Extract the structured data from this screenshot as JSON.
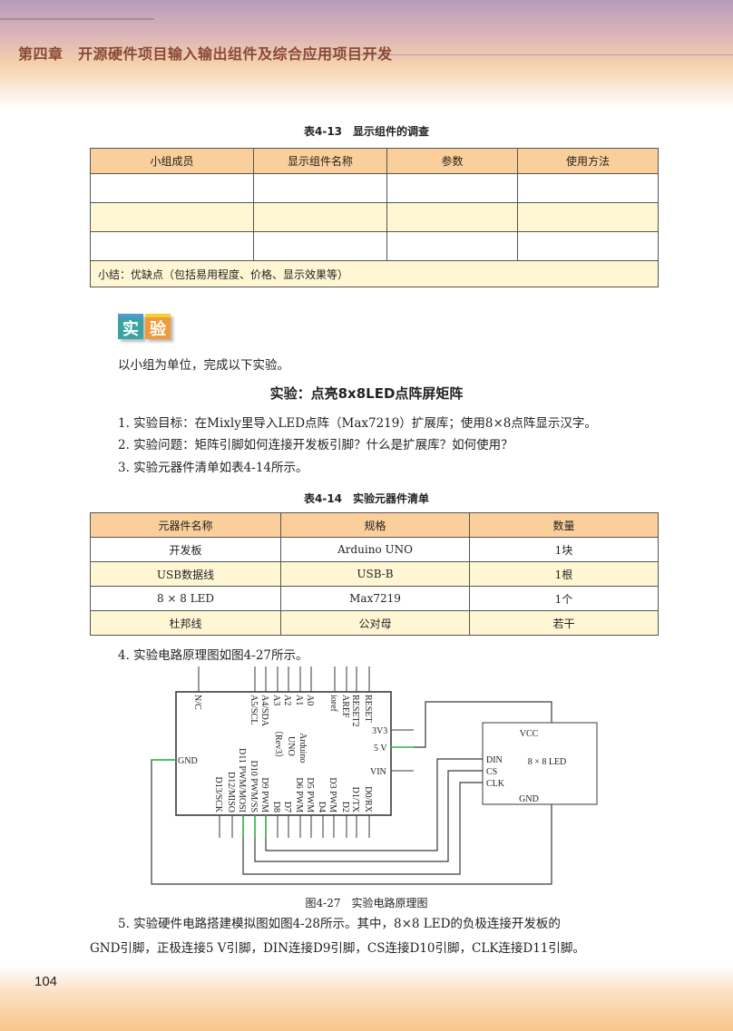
{
  "header": {
    "chapter": "第四章　开源硬件项目输入输出组件及综合应用项目开发"
  },
  "table1": {
    "caption": "表4-13　显示组件的调查",
    "headers": [
      "小组成员",
      "显示组件名称",
      "参数",
      "使用方法"
    ],
    "summary": "小结：优缺点（包括易用程度、价格、显示效果等）"
  },
  "badge": {
    "char1": "实",
    "char2": "验"
  },
  "intro": "以小组为单位，完成以下实验。",
  "experiment_title": "实验：点亮8x8LED点阵屏矩阵",
  "steps": [
    "1.  实验目标：在Mixly里导入LED点阵（Max7219）扩展库；使用8×8点阵显示汉字。",
    "2.  实验问题：矩阵引脚如何连接开发板引脚？什么是扩展库？如何使用？",
    "3.  实验元器件清单如表4-14所示。",
    "4.  实验电路原理图如图4-27所示。"
  ],
  "table2": {
    "caption": "表4-14　实验元器件清单",
    "headers": [
      "元器件名称",
      "规格",
      "数量"
    ],
    "rows": [
      [
        "开发板",
        "Arduino UNO",
        "1块"
      ],
      [
        "USB数据线",
        "USB-B",
        "1根"
      ],
      [
        "8 × 8 LED",
        "Max7219",
        "1个"
      ],
      [
        "杜邦线",
        "公对母",
        "若干"
      ]
    ]
  },
  "figure": {
    "caption": "图4-27　实验电路原理图",
    "top_pins": [
      "N/C",
      "A5/SCL",
      "A4/SDA",
      "A3",
      "A2",
      "A1",
      "A0",
      "ioref",
      "AREF",
      "RESET2",
      "RESET"
    ],
    "bottom_pins": [
      "D13/SCK",
      "D12/MISO",
      "D11 PWM/MOSI",
      "D10 PWM/SS",
      "D9 PWM",
      "D8",
      "D7",
      "D6 PWM",
      "D5 PWM",
      "D4",
      "D3 PWM",
      "D2",
      "D1/TX",
      "D0/RX"
    ],
    "right_pins": [
      "3V3",
      "5 V",
      "VIN"
    ],
    "left_pin": "GND",
    "board_label": [
      "Arduino",
      "UNO",
      "（Rev3）"
    ],
    "led": {
      "name": "8 × 8 LED",
      "pins": [
        "VCC",
        "DIN",
        "CS",
        "CLK",
        "GND"
      ]
    },
    "wire_color": "#3a3a3a",
    "highlight_color": "#2db34a"
  },
  "step5": [
    "5.  实验硬件电路搭建模拟图如图4-28所示。其中，8×8 LED的负极连接开发板的",
    "GND引脚，正极连接5 V引脚，DIN连接D9引脚，CS连接D10引脚，CLK连接D11引脚。"
  ],
  "page_number": "104"
}
